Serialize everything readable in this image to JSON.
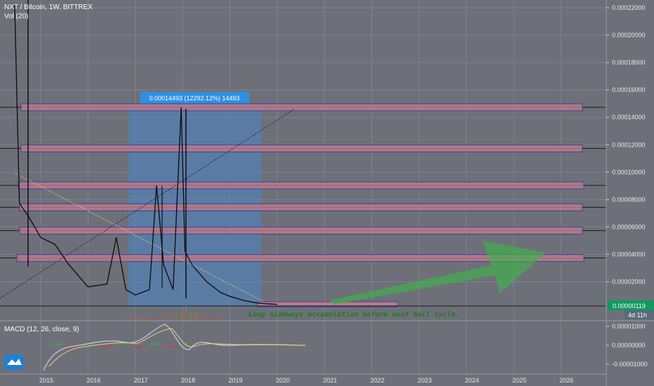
{
  "header": {
    "symbol": "NXT / Bitcoin, 1W, BITTREX",
    "volume": "Vol (20)"
  },
  "price_axis": {
    "ticks": [
      "0.00022000",
      "0.00020000",
      "0.00018000",
      "0.00016000",
      "0.00014000",
      "0.00012000",
      "0.00010000",
      "0.00008000",
      "0.00006000",
      "0.00004000",
      "0.00002000"
    ],
    "last_price": "0.00000119",
    "countdown": "4d 11h"
  },
  "macd": {
    "label": "MACD (12, 26, close, 9)",
    "ticks": [
      "0.00001000",
      "0.00000000",
      "-0.00001000"
    ]
  },
  "time_axis": {
    "ticks": [
      "2015",
      "2016",
      "2017",
      "2018",
      "2019",
      "2020",
      "2021",
      "2022",
      "2023",
      "2024",
      "2025",
      "2026"
    ]
  },
  "measure_label": "0.00014493 (12292.12%) 14493",
  "annotation": "Long sideways accumulation before next bull cycle.",
  "colors": {
    "background": "#6e7079",
    "measure": "#2f8fe0",
    "zone_fill": "#b87a86",
    "zone_border": "#3a3fb0",
    "arrow": "#3fb24a",
    "annotation_text": "#1f7a1f"
  },
  "chart_data": {
    "type": "line",
    "title": "NXT / Bitcoin, 1W, BITTREX",
    "x": [
      2014.45,
      2014.55,
      2014.75,
      2015.0,
      2015.3,
      2015.6,
      2016.0,
      2016.4,
      2016.6,
      2016.8,
      2017.0,
      2017.3,
      2017.45,
      2017.6,
      2017.8,
      2017.97,
      2018.05,
      2018.2,
      2018.5,
      2018.8,
      2019.0,
      2019.3,
      2019.6,
      2020.0
    ],
    "values": [
      0.00022,
      7.5e-05,
      6.5e-05,
      5e-05,
      4.5e-05,
      3e-05,
      1.4e-05,
      1.6e-05,
      5e-05,
      1.2e-05,
      8e-06,
      1.2e-05,
      8.8e-05,
      3e-05,
      1.2e-05,
      0.000145,
      4e-05,
      3e-05,
      1.8e-05,
      1e-05,
      7e-06,
      4e-06,
      2e-06,
      1.19e-06
    ],
    "ylim": [
      0,
      0.000225
    ],
    "xlim": [
      2014.3,
      2026.7
    ],
    "resistance_levels": [
      0.000145,
      0.000115,
      8.8e-05,
      7.2e-05,
      5.5e-05,
      3.5e-05
    ]
  }
}
